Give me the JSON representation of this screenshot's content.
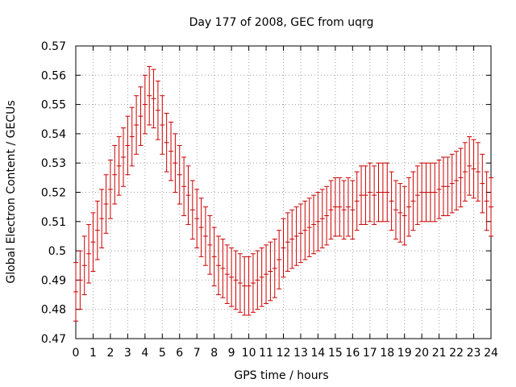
{
  "chart_data": {
    "type": "scatter",
    "title": "Day 177 of 2008, GEC from uqrg",
    "xlabel": "GPS time / hours",
    "ylabel": "Global Electron Content / GECUs",
    "xlim": [
      0,
      24
    ],
    "ylim": [
      0.47,
      0.57
    ],
    "xticks": [
      "0",
      "1",
      "2",
      "3",
      "4",
      "5",
      "6",
      "7",
      "8",
      "9",
      "10",
      "11",
      "12",
      "13",
      "14",
      "15",
      "16",
      "17",
      "18",
      "19",
      "20",
      "21",
      "22",
      "23",
      "24"
    ],
    "yticks": [
      "0.47",
      "0.48",
      "0.49",
      "0.5",
      "0.51",
      "0.52",
      "0.53",
      "0.54",
      "0.55",
      "0.56",
      "0.57"
    ],
    "grid": true,
    "error_bar_color": "#cc0000",
    "error": 0.01,
    "series": [
      {
        "x": [
          0,
          0.25,
          0.5,
          0.75,
          1,
          1.25,
          1.5,
          1.75,
          2,
          2.25,
          2.5,
          2.75,
          3,
          3.25,
          3.5,
          3.75,
          4,
          4.25,
          4.5,
          4.75,
          5,
          5.25,
          5.5,
          5.75,
          6,
          6.25,
          6.5,
          6.75,
          7,
          7.25,
          7.5,
          7.75,
          8,
          8.25,
          8.5,
          8.75,
          9,
          9.25,
          9.5,
          9.75,
          10,
          10.25,
          10.5,
          10.75,
          11,
          11.25,
          11.5,
          11.75,
          12,
          12.25,
          12.5,
          12.75,
          13,
          13.25,
          13.5,
          13.75,
          14,
          14.25,
          14.5,
          14.75,
          15,
          15.25,
          15.5,
          15.75,
          16,
          16.25,
          16.5,
          16.75,
          17,
          17.25,
          17.5,
          17.75,
          18,
          18.25,
          18.5,
          18.75,
          19,
          19.25,
          19.5,
          19.75,
          20,
          20.25,
          20.5,
          20.75,
          21,
          21.25,
          21.5,
          21.75,
          22,
          22.25,
          22.5,
          22.75,
          23,
          23.25,
          23.5,
          23.75,
          24
        ],
        "y": [
          0.486,
          0.49,
          0.495,
          0.499,
          0.503,
          0.507,
          0.511,
          0.516,
          0.521,
          0.526,
          0.529,
          0.532,
          0.536,
          0.539,
          0.543,
          0.546,
          0.55,
          0.553,
          0.552,
          0.548,
          0.543,
          0.537,
          0.534,
          0.53,
          0.526,
          0.522,
          0.519,
          0.514,
          0.511,
          0.508,
          0.505,
          0.502,
          0.498,
          0.495,
          0.494,
          0.492,
          0.491,
          0.49,
          0.489,
          0.488,
          0.488,
          0.489,
          0.49,
          0.491,
          0.492,
          0.493,
          0.494,
          0.497,
          0.501,
          0.503,
          0.504,
          0.505,
          0.506,
          0.507,
          0.508,
          0.509,
          0.51,
          0.511,
          0.512,
          0.514,
          0.515,
          0.515,
          0.514,
          0.515,
          0.514,
          0.517,
          0.519,
          0.519,
          0.52,
          0.519,
          0.52,
          0.52,
          0.52,
          0.517,
          0.514,
          0.513,
          0.512,
          0.515,
          0.517,
          0.519,
          0.52,
          0.52,
          0.52,
          0.52,
          0.521,
          0.522,
          0.522,
          0.523,
          0.524,
          0.525,
          0.527,
          0.529,
          0.528,
          0.527,
          0.523,
          0.517,
          0.515
        ]
      }
    ]
  }
}
